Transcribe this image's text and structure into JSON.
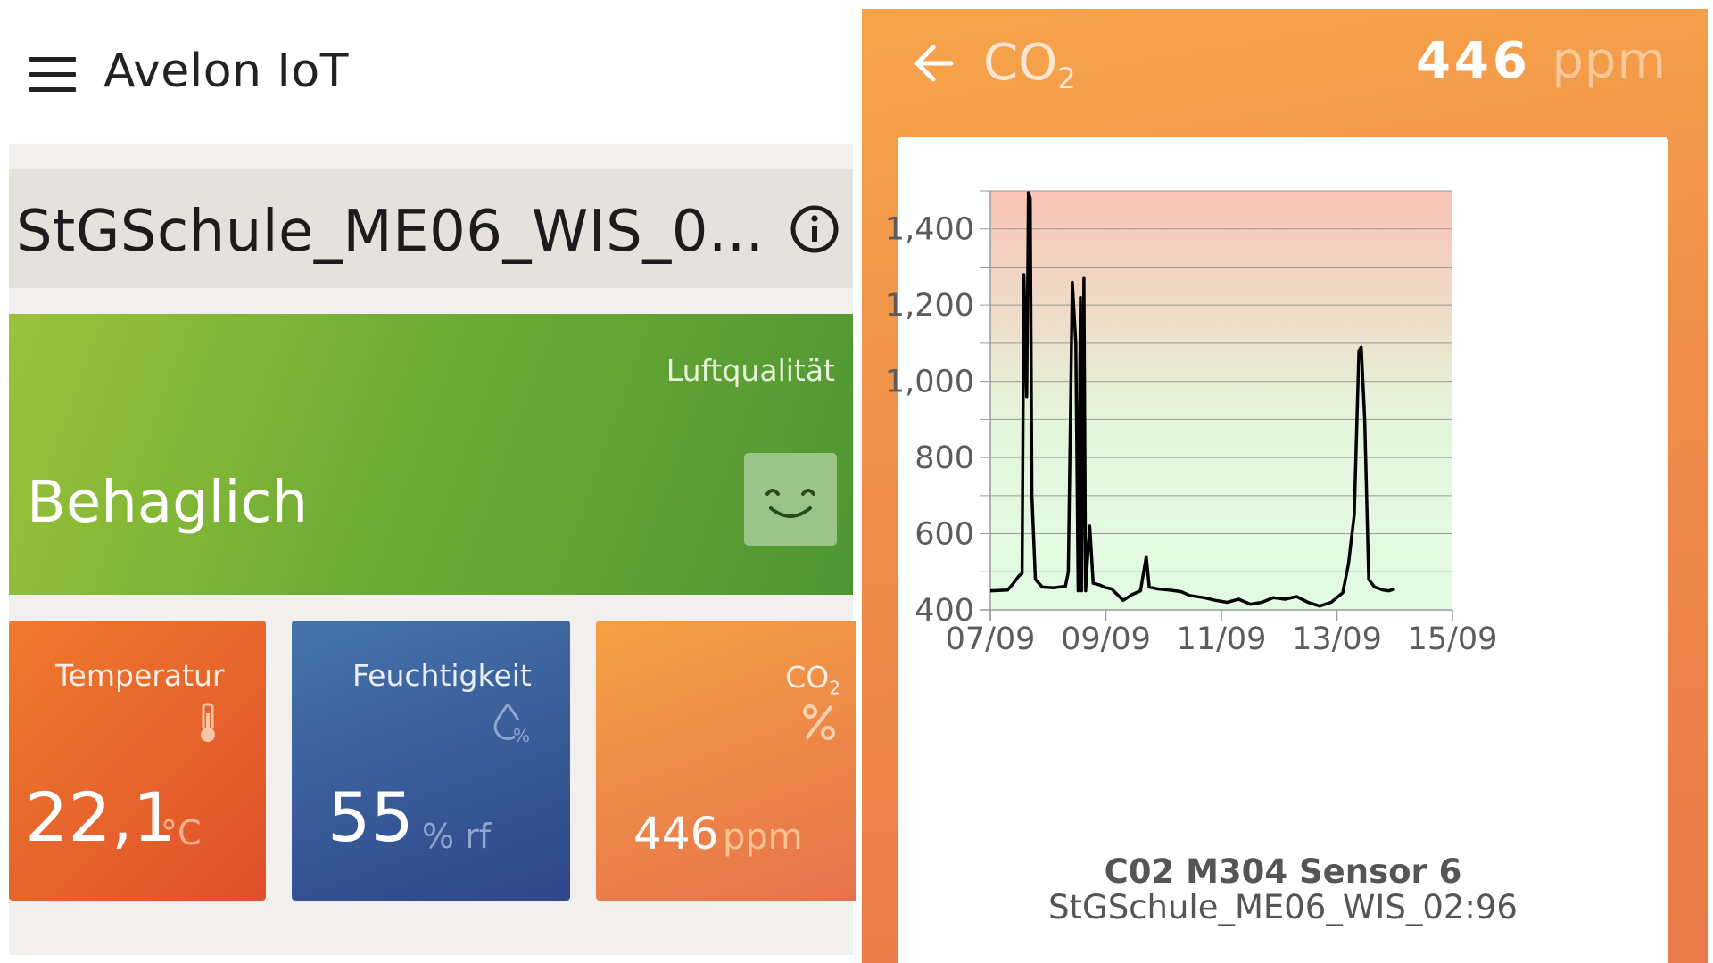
{
  "left": {
    "app_title": "Avelon IoT",
    "device_name": "StGSchule_ME06_WIS_0...",
    "air_quality": {
      "label": "Luftqualität",
      "status": "Behaglich"
    },
    "tiles": {
      "temperature": {
        "label": "Temperatur",
        "value": "22,1",
        "unit": "°C"
      },
      "humidity": {
        "label": "Feuchtigkeit",
        "value": "55",
        "unit": "% rf"
      },
      "co2": {
        "label": "CO",
        "label_sub": "2",
        "value": "446",
        "unit": "ppm"
      }
    }
  },
  "right": {
    "title": "CO",
    "title_sub": "2",
    "value": "446",
    "unit": "ppm",
    "sensor_name": "C02 M304 Sensor 6",
    "device_name": "StGSchule_ME06_WIS_02:96"
  },
  "colors": {
    "air_green": "#6eac35",
    "temp_orange": "#e0502b",
    "humidity_blue": "#2e468a",
    "co2_orange": "#ef8b49",
    "zone_red": "#f9c3b6",
    "zone_green": "#e3fbe3"
  },
  "chart_data": {
    "type": "line",
    "x_unit": "date",
    "xticks": [
      "07/09",
      "09/09",
      "11/09",
      "13/09",
      "15/09"
    ],
    "yticks": [
      "400",
      "600",
      "800",
      "1,000",
      "1,200",
      "1,400"
    ],
    "ytick_values": [
      400,
      600,
      800,
      1000,
      1200,
      1400
    ],
    "xlim": [
      "07/09",
      "15/09"
    ],
    "ylim": [
      400,
      1500
    ],
    "background_gradient": "red at top (high CO2) to green at bottom (low CO2)",
    "grid": true,
    "series": [
      {
        "x_day_points": "approximate readings, x = day of September",
        "points": [
          [
            7.0,
            450
          ],
          [
            7.3,
            452
          ],
          [
            7.4,
            470
          ],
          [
            7.5,
            490
          ],
          [
            7.55,
            495
          ],
          [
            7.58,
            1280
          ],
          [
            7.63,
            960
          ],
          [
            7.66,
            1495
          ],
          [
            7.69,
            1480
          ],
          [
            7.72,
            700
          ],
          [
            7.78,
            480
          ],
          [
            7.9,
            460
          ],
          [
            8.1,
            458
          ],
          [
            8.3,
            462
          ],
          [
            8.35,
            500
          ],
          [
            8.42,
            1260
          ],
          [
            8.48,
            1100
          ],
          [
            8.52,
            450
          ],
          [
            8.56,
            1220
          ],
          [
            8.58,
            450
          ],
          [
            8.62,
            1270
          ],
          [
            8.65,
            450
          ],
          [
            8.68,
            530
          ],
          [
            8.72,
            620
          ],
          [
            8.78,
            470
          ],
          [
            8.9,
            465
          ],
          [
            9.0,
            458
          ],
          [
            9.1,
            455
          ],
          [
            9.2,
            440
          ],
          [
            9.3,
            425
          ],
          [
            9.45,
            440
          ],
          [
            9.6,
            450
          ],
          [
            9.7,
            540
          ],
          [
            9.75,
            460
          ],
          [
            9.9,
            455
          ],
          [
            10.1,
            452
          ],
          [
            10.3,
            448
          ],
          [
            10.45,
            438
          ],
          [
            10.7,
            432
          ],
          [
            10.9,
            425
          ],
          [
            11.1,
            420
          ],
          [
            11.3,
            428
          ],
          [
            11.5,
            415
          ],
          [
            11.7,
            420
          ],
          [
            11.9,
            432
          ],
          [
            12.1,
            428
          ],
          [
            12.3,
            435
          ],
          [
            12.5,
            420
          ],
          [
            12.7,
            410
          ],
          [
            12.9,
            420
          ],
          [
            13.1,
            445
          ],
          [
            13.2,
            520
          ],
          [
            13.3,
            650
          ],
          [
            13.38,
            1080
          ],
          [
            13.42,
            1090
          ],
          [
            13.48,
            900
          ],
          [
            13.55,
            480
          ],
          [
            13.65,
            460
          ],
          [
            13.8,
            452
          ],
          [
            13.9,
            450
          ],
          [
            14.0,
            455
          ]
        ]
      }
    ]
  }
}
